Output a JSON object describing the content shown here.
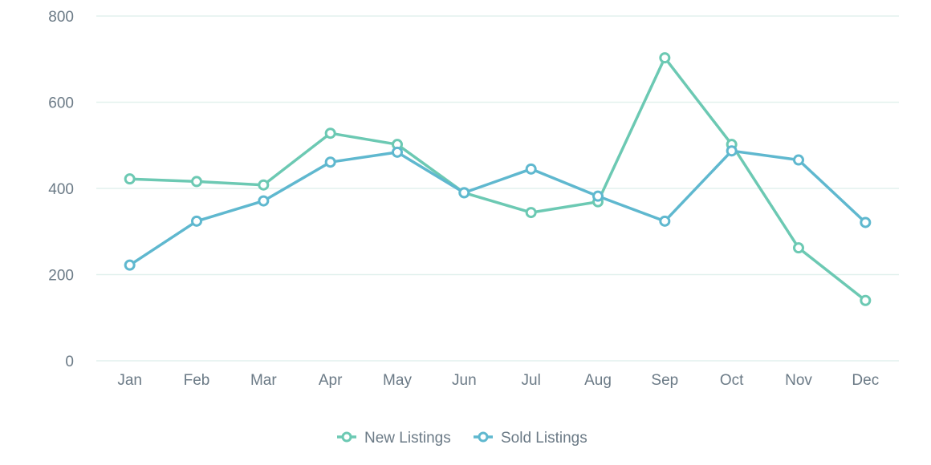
{
  "chart_data": {
    "type": "line",
    "categories": [
      "Jan",
      "Feb",
      "Mar",
      "Apr",
      "May",
      "Jun",
      "Jul",
      "Aug",
      "Sep",
      "Oct",
      "Nov",
      "Dec"
    ],
    "series": [
      {
        "name": "New Listings",
        "color": "#6cc9b3",
        "values": [
          422,
          416,
          408,
          528,
          502,
          390,
          344,
          369,
          703,
          502,
          262,
          140
        ]
      },
      {
        "name": "Sold Listings",
        "color": "#5fb8cf",
        "values": [
          222,
          324,
          371,
          461,
          484,
          390,
          445,
          382,
          324,
          487,
          466,
          321
        ]
      }
    ],
    "ylim": [
      0,
      800
    ],
    "yticks": [
      0,
      200,
      400,
      600,
      800
    ],
    "grid": true,
    "legend_position": "bottom-center",
    "title": "",
    "xlabel": "",
    "ylabel": ""
  }
}
